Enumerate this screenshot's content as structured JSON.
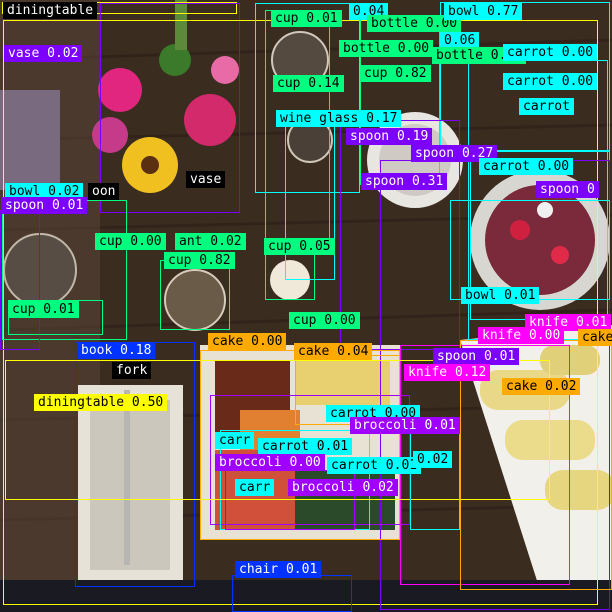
{
  "image": {
    "scene": "overhead-dining-table-with-object-detections",
    "colors": {
      "diningtable": "#ffff00",
      "vase": "#7d00ff",
      "cup": "#00ff7f",
      "wine_glass": "#00ffff",
      "bottle": "#00ff7f",
      "bowl": "#00ffff",
      "carrot": "#00ffff",
      "spoon": "#7d00ff",
      "knife": "#ff00ff",
      "cake": "#ffaa00",
      "broccoli": "#a000ff",
      "book": "#0033ff",
      "fork": "#000000",
      "chair": "#0033ff"
    }
  },
  "detections": [
    {
      "text": "diningtable"
    },
    {
      "text": "vase 0.02"
    },
    {
      "text": "vase"
    },
    {
      "text": "cup 0.01"
    },
    {
      "text": "0.04"
    },
    {
      "text": "bottle 0.00"
    },
    {
      "text": "bowl 0.77"
    },
    {
      "text": "bottle 0.00"
    },
    {
      "text": "0.06"
    },
    {
      "text": "bottle 0.00"
    },
    {
      "text": "carrot 0.00"
    },
    {
      "text": "cup 0.14"
    },
    {
      "text": "cup 0.82"
    },
    {
      "text": "carrot 0.00"
    },
    {
      "text": "wine glass 0.17"
    },
    {
      "text": "carrot"
    },
    {
      "text": "spoon 0.19"
    },
    {
      "text": "spoon 0.27"
    },
    {
      "text": "carrot 0.00"
    },
    {
      "text": "spoon 0.31"
    },
    {
      "text": "spoon 0"
    },
    {
      "text": "bowl 0.02"
    },
    {
      "text": "oon"
    },
    {
      "text": "spoon 0.01"
    },
    {
      "text": "cup 0.00"
    },
    {
      "text": "ant 0.02"
    },
    {
      "text": "cup 0.05"
    },
    {
      "text": "cup 0.82"
    },
    {
      "text": "bowl 0.01"
    },
    {
      "text": "cup 0.01"
    },
    {
      "text": "cup 0.00"
    },
    {
      "text": "knife 0.01"
    },
    {
      "text": "knife 0.00"
    },
    {
      "text": "cake 0.00"
    },
    {
      "text": "cake 0.04"
    },
    {
      "text": "cake"
    },
    {
      "text": "book 0.18"
    },
    {
      "text": "spoon 0.01"
    },
    {
      "text": "knife 0.12"
    },
    {
      "text": "fork"
    },
    {
      "text": "cake 0.02"
    },
    {
      "text": "diningtable 0.50"
    },
    {
      "text": "carrot 0.00"
    },
    {
      "text": "broccoli 0.01"
    },
    {
      "text": "carr"
    },
    {
      "text": "carrot 0.01"
    },
    {
      "text": "broccoli 0.00"
    },
    {
      "text": "carrot 0.01"
    },
    {
      "text": "0.02"
    },
    {
      "text": "carr"
    },
    {
      "text": "broccoli 0.02"
    },
    {
      "text": "chair 0.01"
    }
  ]
}
